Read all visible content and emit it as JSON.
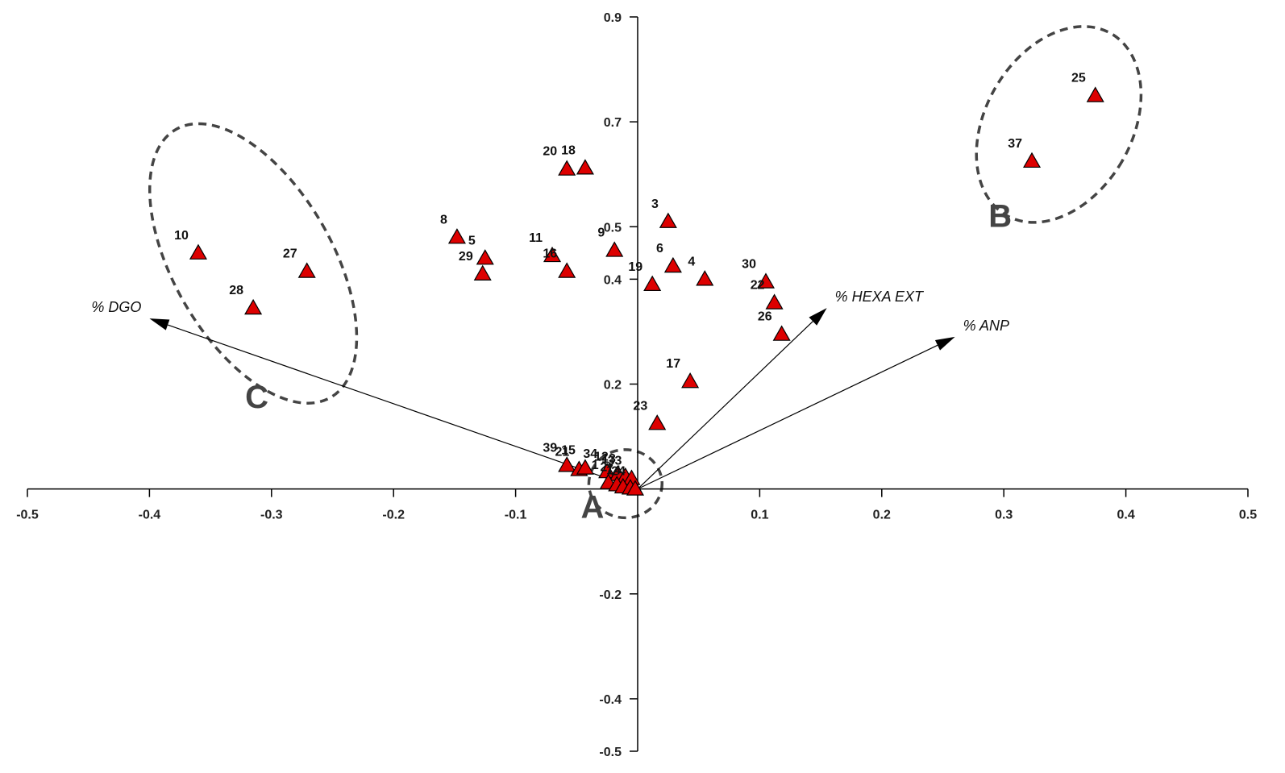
{
  "chart_data": {
    "type": "scatter",
    "title": "",
    "xlabel": "",
    "ylabel": "",
    "xlim": [
      -0.5,
      0.5
    ],
    "ylim": [
      -0.5,
      0.9
    ],
    "x_ticks": [
      {
        "value": -0.5,
        "label": "-0.5"
      },
      {
        "value": -0.4,
        "label": "-0.4"
      },
      {
        "value": -0.3,
        "label": "-0.3"
      },
      {
        "value": -0.2,
        "label": "-0.2"
      },
      {
        "value": -0.1,
        "label": "-0.1"
      },
      {
        "value": 0.1,
        "label": "0.1"
      },
      {
        "value": 0.2,
        "label": "0.2"
      },
      {
        "value": 0.3,
        "label": "0.3"
      },
      {
        "value": 0.4,
        "label": "0.4"
      },
      {
        "value": 0.5,
        "label": "0.5"
      }
    ],
    "y_ticks": [
      {
        "value": 0.9,
        "label": "0.9"
      },
      {
        "value": 0.7,
        "label": "0.7"
      },
      {
        "value": 0.5,
        "label": "0.5"
      },
      {
        "value": 0.4,
        "label": "0.4"
      },
      {
        "value": 0.2,
        "label": "0.2"
      },
      {
        "value": -0.2,
        "label": "-0.2"
      },
      {
        "value": -0.4,
        "label": "-0.4"
      },
      {
        "value": -0.5,
        "label": "-0.5"
      }
    ],
    "marker": {
      "shape": "triangle",
      "color": "#dd0000"
    },
    "points": [
      {
        "label": "25",
        "x": 0.375,
        "y": 0.75
      },
      {
        "label": "37",
        "x": 0.323,
        "y": 0.625
      },
      {
        "label": "20",
        "x": -0.058,
        "y": 0.61
      },
      {
        "label": "18",
        "x": -0.043,
        "y": 0.612
      },
      {
        "label": "3",
        "x": 0.025,
        "y": 0.51
      },
      {
        "label": "8",
        "x": -0.148,
        "y": 0.48
      },
      {
        "label": "11",
        "x": -0.07,
        "y": 0.445
      },
      {
        "label": "5",
        "x": -0.125,
        "y": 0.44
      },
      {
        "label": "6",
        "x": 0.029,
        "y": 0.425
      },
      {
        "label": "10",
        "x": -0.36,
        "y": 0.45
      },
      {
        "label": "27",
        "x": -0.271,
        "y": 0.415
      },
      {
        "label": "9",
        "x": -0.019,
        "y": 0.455
      },
      {
        "label": "29",
        "x": -0.127,
        "y": 0.41
      },
      {
        "label": "16",
        "x": -0.058,
        "y": 0.415
      },
      {
        "label": "19",
        "x": 0.012,
        "y": 0.39
      },
      {
        "label": "4",
        "x": 0.055,
        "y": 0.4
      },
      {
        "label": "30",
        "x": 0.105,
        "y": 0.395
      },
      {
        "label": "22",
        "x": 0.112,
        "y": 0.355
      },
      {
        "label": "26",
        "x": 0.118,
        "y": 0.295
      },
      {
        "label": "28",
        "x": -0.315,
        "y": 0.345
      },
      {
        "label": "17",
        "x": 0.043,
        "y": 0.205
      },
      {
        "label": "23",
        "x": 0.016,
        "y": 0.125
      },
      {
        "label": "39",
        "x": -0.058,
        "y": 0.045
      },
      {
        "label": "21",
        "x": -0.048,
        "y": 0.037
      },
      {
        "label": "15",
        "x": -0.043,
        "y": 0.04
      },
      {
        "label": "34",
        "x": -0.025,
        "y": 0.033
      },
      {
        "label": "12",
        "x": -0.016,
        "y": 0.028
      },
      {
        "label": "13",
        "x": -0.01,
        "y": 0.024
      },
      {
        "label": "33",
        "x": -0.005,
        "y": 0.02
      },
      {
        "label": "1",
        "x": -0.024,
        "y": 0.012
      },
      {
        "label": "2",
        "x": -0.017,
        "y": 0.008
      },
      {
        "label": "7",
        "x": -0.012,
        "y": 0.004
      },
      {
        "label": "14",
        "x": -0.006,
        "y": 0.002
      },
      {
        "label": "24",
        "x": -0.002,
        "y": 0.0
      }
    ],
    "vectors": [
      {
        "label": "% DGO",
        "x": -0.4,
        "y": 0.325
      },
      {
        "label": "% HEXA EXT",
        "x": 0.155,
        "y": 0.345
      },
      {
        "label": "% ANP",
        "x": 0.26,
        "y": 0.29
      }
    ],
    "groups": [
      {
        "label": "A",
        "cx": -0.01,
        "cy": 0.01,
        "rx": 0.03,
        "ry": 0.065,
        "rotation": 0,
        "label_x": -0.037,
        "label_y": -0.055
      },
      {
        "label": "B",
        "cx": 0.345,
        "cy": 0.695,
        "rx": 0.06,
        "ry": 0.2,
        "rotation": 30,
        "label_x": 0.297,
        "label_y": 0.5
      },
      {
        "label": "C",
        "cx": -0.315,
        "cy": 0.43,
        "rx": 0.065,
        "ry": 0.295,
        "rotation": -30,
        "label_x": -0.312,
        "label_y": 0.155
      }
    ]
  }
}
